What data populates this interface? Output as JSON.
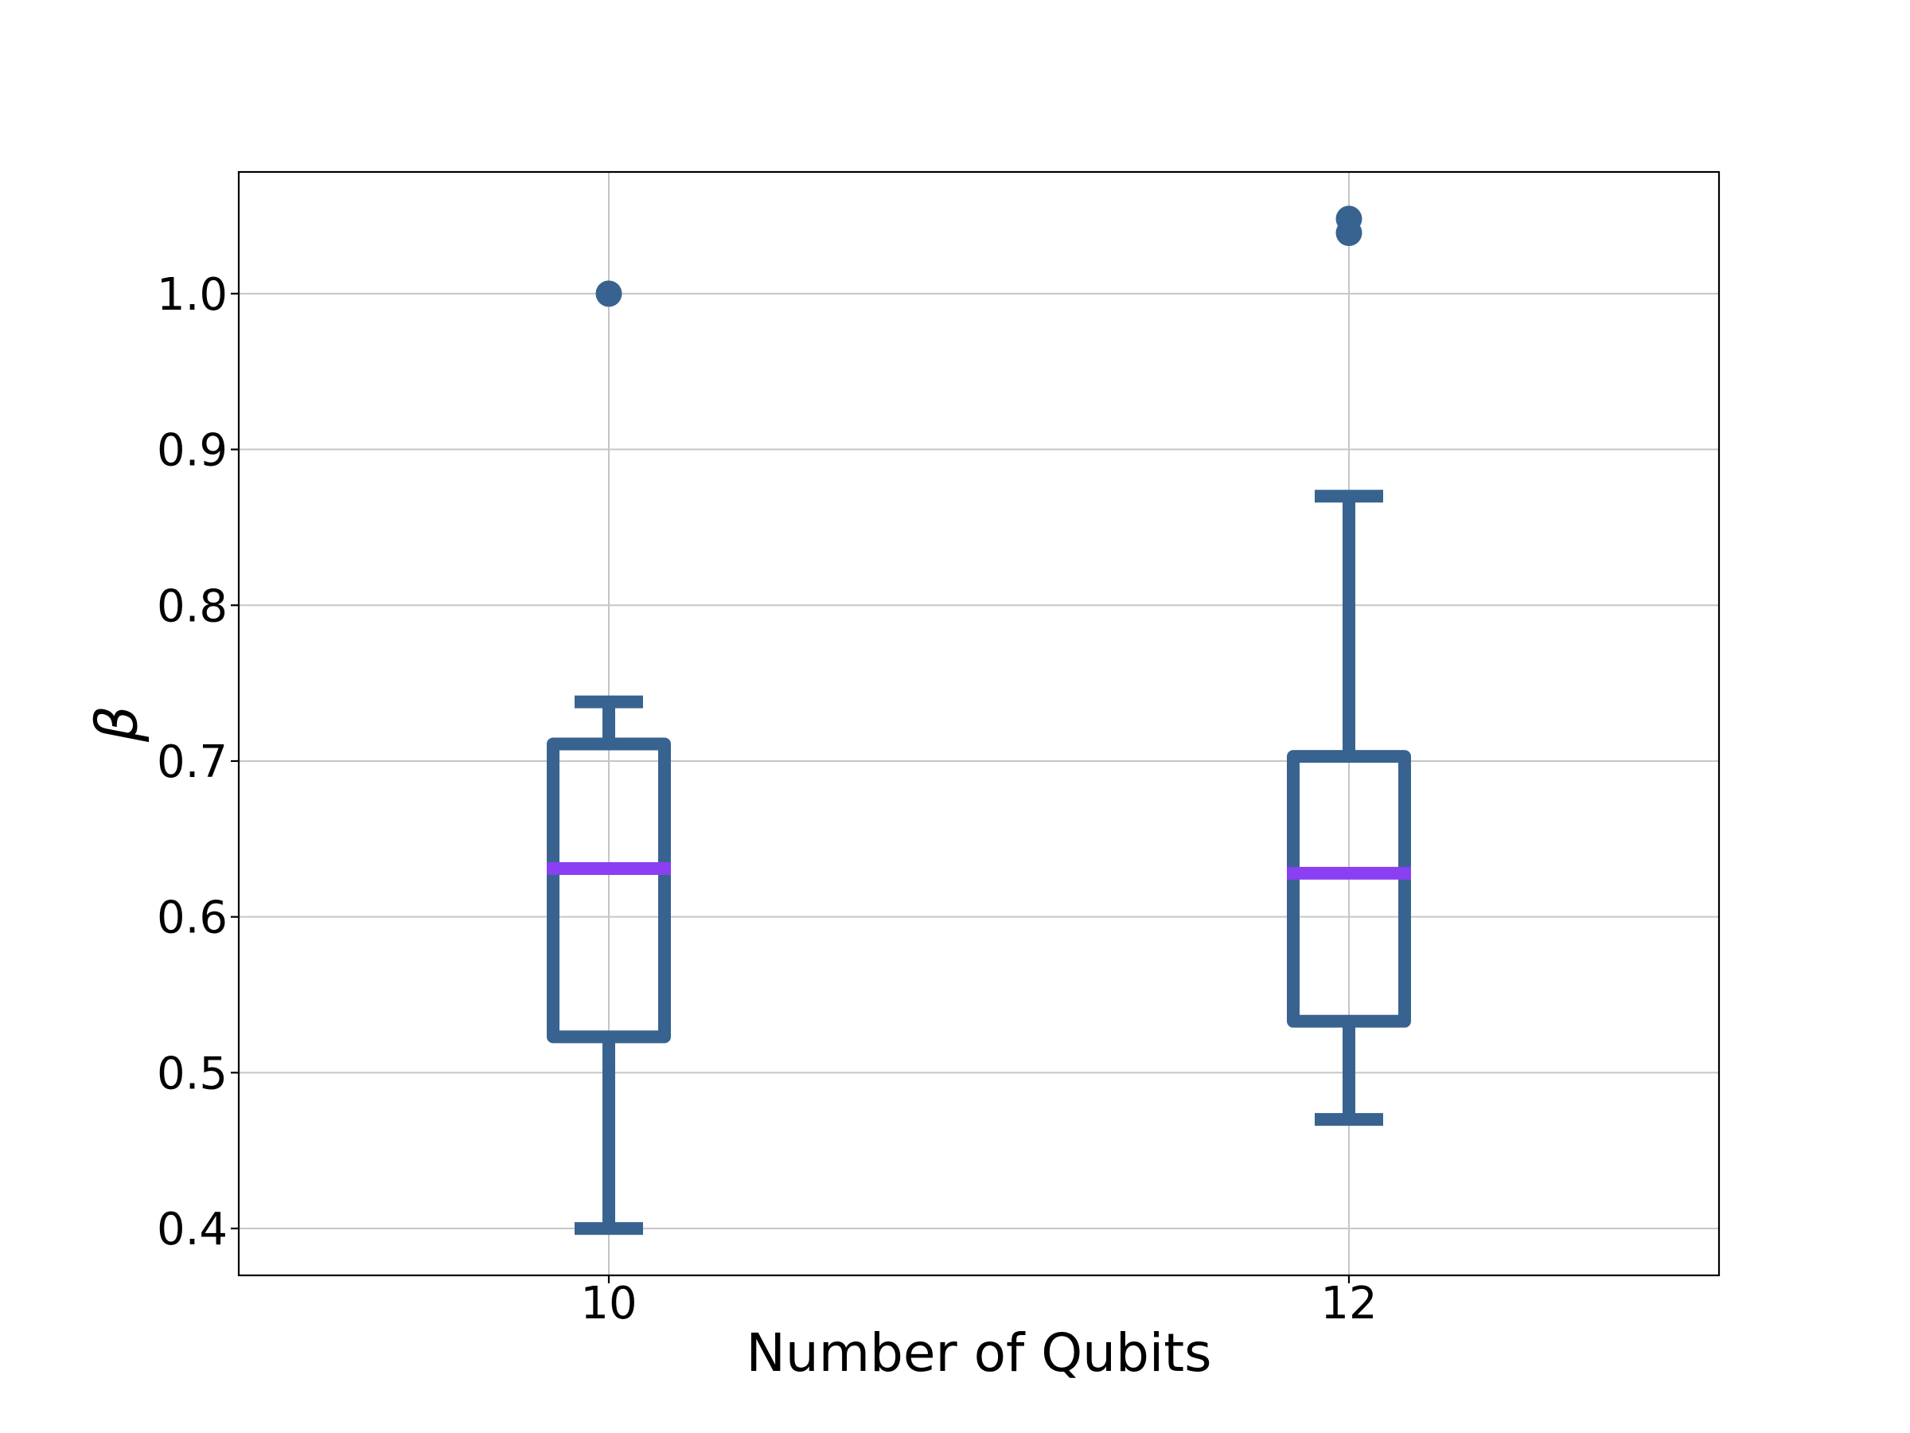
{
  "chart_data": {
    "type": "boxplot",
    "title": "",
    "xlabel": "Number of Qubits",
    "ylabel": "β",
    "categories": [
      "10",
      "12"
    ],
    "ylim": [
      0.3699,
      1.0781
    ],
    "yticks": [
      0.4,
      0.5,
      0.6,
      0.7,
      0.8,
      0.9,
      1.0
    ],
    "ytick_labels": [
      "0.4",
      "0.5",
      "0.6",
      "0.7",
      "0.8",
      "0.9",
      "1.0"
    ],
    "grid": true,
    "legend": false,
    "boxes": [
      {
        "category": "10",
        "whislo": 0.4,
        "q1": 0.523,
        "med": 0.631,
        "q3": 0.711,
        "whishi": 0.738,
        "fliers": [
          1.0
        ]
      },
      {
        "category": "12",
        "whislo": 0.47,
        "q1": 0.533,
        "med": 0.628,
        "q3": 0.703,
        "whishi": 0.87,
        "fliers": [
          1.039,
          1.048
        ]
      }
    ],
    "colors": {
      "box": "#386390",
      "median": "#8A3FF2",
      "flier": "#386390",
      "spine": "#000000",
      "grid": "#c6c6c6",
      "text": "#000000"
    }
  }
}
